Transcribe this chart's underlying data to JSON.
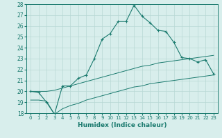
{
  "xlabel": "Humidex (Indice chaleur)",
  "x_values": [
    0,
    1,
    2,
    3,
    4,
    5,
    6,
    7,
    8,
    9,
    10,
    11,
    12,
    13,
    14,
    15,
    16,
    17,
    18,
    19,
    20,
    21,
    22,
    23
  ],
  "main_line": [
    20.0,
    19.9,
    19.0,
    17.9,
    20.5,
    20.5,
    21.2,
    21.5,
    23.0,
    24.8,
    25.3,
    26.4,
    26.4,
    27.9,
    26.9,
    26.3,
    25.6,
    25.5,
    24.5,
    23.1,
    23.0,
    22.7,
    22.9,
    21.6
  ],
  "upper_line": [
    20.0,
    20.0,
    20.0,
    20.1,
    20.3,
    20.5,
    20.7,
    20.9,
    21.1,
    21.3,
    21.5,
    21.7,
    21.9,
    22.1,
    22.3,
    22.4,
    22.6,
    22.7,
    22.8,
    22.9,
    23.0,
    23.1,
    23.2,
    23.3
  ],
  "lower_line": [
    19.2,
    19.2,
    19.1,
    17.9,
    18.4,
    18.7,
    18.9,
    19.2,
    19.4,
    19.6,
    19.8,
    20.0,
    20.2,
    20.4,
    20.5,
    20.7,
    20.8,
    20.9,
    21.0,
    21.1,
    21.2,
    21.3,
    21.4,
    21.5
  ],
  "line_color": "#1a7a6e",
  "background_color": "#d8eeec",
  "grid_color": "#b8d8d4",
  "ylim": [
    18,
    28
  ],
  "yticks": [
    18,
    19,
    20,
    21,
    22,
    23,
    24,
    25,
    26,
    27,
    28
  ]
}
